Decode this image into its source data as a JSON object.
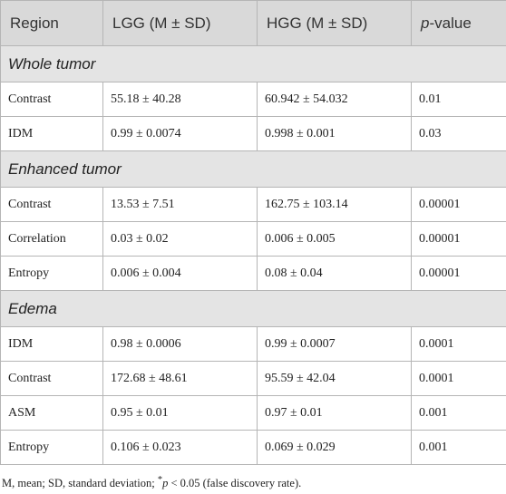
{
  "table": {
    "header": [
      "Region",
      "LGG (M ± SD)",
      "HGG (M ± SD)"
    ],
    "header_pvalue": {
      "italic": "p",
      "rest": "-value"
    },
    "sections": [
      {
        "title": "Whole tumor",
        "rows": [
          [
            "Contrast",
            "55.18 ± 40.28",
            "60.942 ± 54.032",
            "0.01"
          ],
          [
            "IDM",
            "0.99 ± 0.0074",
            "0.998 ± 0.001",
            "0.03"
          ]
        ]
      },
      {
        "title": "Enhanced tumor",
        "rows": [
          [
            "Contrast",
            "13.53 ± 7.51",
            "162.75 ± 103.14",
            "0.00001"
          ],
          [
            "Correlation",
            "0.03 ± 0.02",
            "0.006 ± 0.005",
            "0.00001"
          ],
          [
            "Entropy",
            "0.006 ± 0.004",
            "0.08 ± 0.04",
            "0.00001"
          ]
        ]
      },
      {
        "title": "Edema",
        "rows": [
          [
            "IDM",
            "0.98 ± 0.0006",
            "0.99 ± 0.0007",
            "0.0001"
          ],
          [
            "Contrast",
            "172.68 ± 48.61",
            "95.59 ± 42.04",
            "0.0001"
          ],
          [
            "ASM",
            "0.95 ± 0.01",
            "0.97 ± 0.01",
            "0.001"
          ],
          [
            "Entropy",
            "0.106 ± 0.023",
            "0.069 ± 0.029",
            "0.001"
          ]
        ]
      }
    ]
  },
  "footnote": {
    "before": "M, mean; SD, standard deviation; ",
    "star": "*",
    "italic": "p",
    "after": " < 0.05 (false discovery rate)."
  }
}
